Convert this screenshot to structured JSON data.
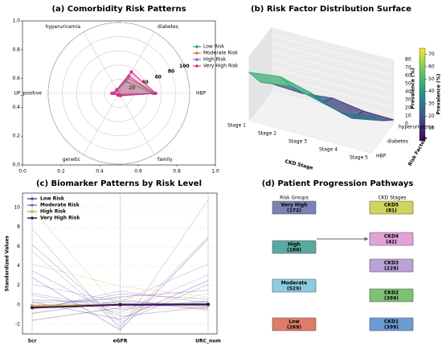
{
  "chart_data": [
    {
      "type": "radar",
      "title": "(a) Comorbidity Risk Patterns",
      "axes": [
        "HBP",
        "diabetes",
        "hyperuricemia",
        "UP_positive",
        "genetic",
        "family"
      ],
      "rlim": [
        0,
        100
      ],
      "rticks": [
        20,
        40,
        60,
        80,
        100
      ],
      "xlim": [
        0,
        1
      ],
      "xticks": [
        {
          "value": 0,
          "label": "0.0"
        },
        {
          "value": 0.2,
          "label": "0.2"
        },
        {
          "value": 0.4,
          "label": "0.4"
        },
        {
          "value": 0.6,
          "label": "0.6"
        },
        {
          "value": 0.8,
          "label": "0.8"
        },
        {
          "value": 1,
          "label": "1.0"
        }
      ],
      "ylim": [
        0,
        1
      ],
      "yticks": [
        {
          "value": 0,
          "label": "0.0"
        },
        {
          "value": 0.2,
          "label": "0.2"
        },
        {
          "value": 0.4,
          "label": "0.4"
        },
        {
          "value": 0.6,
          "label": "0.6"
        },
        {
          "value": 0.8,
          "label": "0.8"
        },
        {
          "value": 1,
          "label": "1.0"
        }
      ],
      "legend": "upper right",
      "series": [
        {
          "name": "Low Risk",
          "color": "#2ca089",
          "values": [
            48,
            20,
            5,
            8,
            2,
            2
          ]
        },
        {
          "name": "Moderate Risk",
          "color": "#e6772e",
          "values": [
            50,
            25,
            5,
            8,
            2,
            3
          ]
        },
        {
          "name": "High Risk",
          "color": "#8c6bb1",
          "values": [
            50,
            28,
            5,
            7,
            2,
            3
          ]
        },
        {
          "name": "Very High Risk",
          "color": "#e7298a",
          "values": [
            52,
            35,
            6,
            10,
            3,
            4
          ]
        }
      ]
    },
    {
      "type": "surface3d",
      "title": "(b) Risk Factor Distribution Surface",
      "xlabel": "CKD Stage",
      "ylabel": "Risk Factors",
      "zlabel": "Prevalence (%)",
      "categories": [
        "Stage 1",
        "Stage 2",
        "Stage 3",
        "Stage 4",
        "Stage 5"
      ],
      "factors": [
        "HBP",
        "diabetes",
        "hyperuricemia"
      ],
      "values": [
        [
          60,
          65,
          55,
          40,
          45
        ],
        [
          30,
          35,
          25,
          15,
          22
        ],
        [
          10,
          8,
          12,
          6,
          5
        ]
      ],
      "zlim": [
        0,
        80
      ],
      "zticks": [
        0,
        10,
        20,
        30,
        40,
        50,
        60,
        70,
        80
      ],
      "clim": [
        0,
        75
      ],
      "cticks": [
        10,
        20,
        30,
        40,
        50,
        60,
        70
      ],
      "colorbar_label": "Prevalence (%)"
    },
    {
      "type": "parallel",
      "title": "(c) Biomarker Patterns by Risk Level",
      "categories": [
        "Scr",
        "eGFR",
        "URC_num"
      ],
      "ylabel": "Standardized Values",
      "ylim": [
        -3,
        11.5
      ],
      "yticks": [
        -2,
        0,
        2,
        4,
        6,
        8,
        10
      ],
      "legend": "upper left",
      "series": [
        {
          "name": "Low Risk",
          "color": "#4b4ba8",
          "values": [
            -0.1,
            0.0,
            0.0
          ],
          "profiles": [
            [
              1.2,
              -0.5,
              0.3
            ],
            [
              3.5,
              -1.2,
              -0.2
            ],
            [
              -0.3,
              0.8,
              1.5
            ],
            [
              0.5,
              0.2,
              -0.4
            ],
            [
              6.2,
              -1.8,
              2.1
            ],
            [
              -0.4,
              1.1,
              0.6
            ]
          ]
        },
        {
          "name": "Moderate Risk",
          "color": "#8c6bb1",
          "values": [
            -0.2,
            0.05,
            0.05
          ],
          "profiles": [
            [
              5.5,
              -2.2,
              7.0
            ],
            [
              2.1,
              0.3,
              4.2
            ],
            [
              -0.5,
              1.4,
              0.2
            ],
            [
              7.8,
              -2.5,
              10.8
            ],
            [
              1.0,
              -0.8,
              3.1
            ],
            [
              0.2,
              0.6,
              -0.6
            ]
          ]
        },
        {
          "name": "High Risk",
          "color": "#c9b84a",
          "values": [
            -0.1,
            0.02,
            0.02
          ],
          "profiles": [
            [
              9.8,
              -0.5,
              -0.3
            ],
            [
              4.2,
              1.9,
              0.8
            ],
            [
              0.5,
              -1.0,
              1.2
            ],
            [
              -0.8,
              0.9,
              -0.5
            ]
          ]
        },
        {
          "name": "Very High Risk",
          "color": "#3b0f5e",
          "values": [
            -0.3,
            0.0,
            0.05
          ],
          "profiles": [
            [
              2.8,
              -2.6,
              6.8
            ],
            [
              -1.6,
              -0.3,
              0.4
            ],
            [
              0.3,
              -1.5,
              2.5
            ],
            [
              -0.9,
              0.4,
              -0.2
            ]
          ]
        }
      ]
    }
  ],
  "diagram": {
    "title": "(d) Patient Progression Pathways",
    "left_header": "Risk Groups",
    "right_header": "CKD Stages",
    "left_nodes": [
      {
        "label": "Very High",
        "count": "(172)",
        "color": "#7c83b3"
      },
      {
        "label": "High",
        "count": "(180)",
        "color": "#5aa9a0"
      },
      {
        "label": "Moderate",
        "count": "(529)",
        "color": "#8ecbe2"
      },
      {
        "label": "Low",
        "count": "(269)",
        "color": "#e07b6a"
      }
    ],
    "right_nodes": [
      {
        "label": "CKD5",
        "count": "(81)",
        "color": "#d3d35c"
      },
      {
        "label": "CKD4",
        "count": "(42)",
        "color": "#e2a2d8"
      },
      {
        "label": "CKD3",
        "count": "(229)",
        "color": "#b9a2d8"
      },
      {
        "label": "CKD2",
        "count": "(399)",
        "color": "#7dc172"
      },
      {
        "label": "CKD1",
        "count": "(399)",
        "color": "#6b9bd4"
      }
    ]
  }
}
